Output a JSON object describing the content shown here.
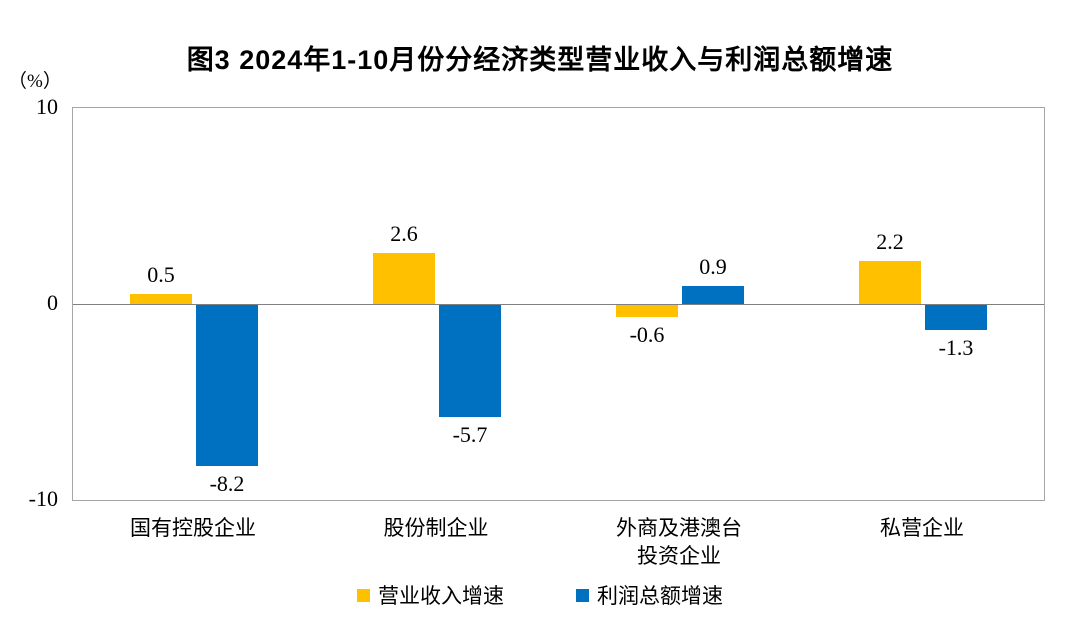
{
  "figure": {
    "title": "图3  2024年1-10月份分经济类型营业收入与利润总额增速",
    "y_axis_unit": "（%）"
  },
  "chart_data": {
    "type": "bar",
    "title": "图3  2024年1-10月份分经济类型营业收入与利润总额增速",
    "categories": [
      "国有控股企业",
      "股份制企业",
      "外商及港澳台投资企业",
      "私营企业"
    ],
    "category_display": [
      [
        "国有控股企业"
      ],
      [
        "股份制企业"
      ],
      [
        "外商及港澳台",
        "投资企业"
      ],
      [
        "私营企业"
      ]
    ],
    "series": [
      {
        "name": "营业收入增速",
        "color": "#FFC000",
        "values": [
          0.5,
          2.6,
          -0.6,
          2.2
        ]
      },
      {
        "name": "利润总额增速",
        "color": "#0070C0",
        "values": [
          -8.2,
          -5.7,
          0.9,
          -1.3
        ]
      }
    ],
    "data_labels": [
      "0.5",
      "-8.2",
      "2.6",
      "-5.7",
      "-0.6",
      "0.9",
      "2.2",
      "-1.3"
    ],
    "xlabel": "",
    "ylabel": "（%）",
    "ylim": [
      -10,
      10
    ],
    "yticks": [
      {
        "label": "10",
        "value": 10
      },
      {
        "label": "0",
        "value": 0
      },
      {
        "label": "-10",
        "value": -10
      }
    ],
    "grid": false,
    "legend_position": "bottom"
  },
  "colors": {
    "revenue_series": "#FFC000",
    "profit_series": "#0070C0",
    "plot_border": "#A6A6A6",
    "zero_line": "#808080",
    "text": "#000000",
    "background": "#FFFFFF"
  }
}
